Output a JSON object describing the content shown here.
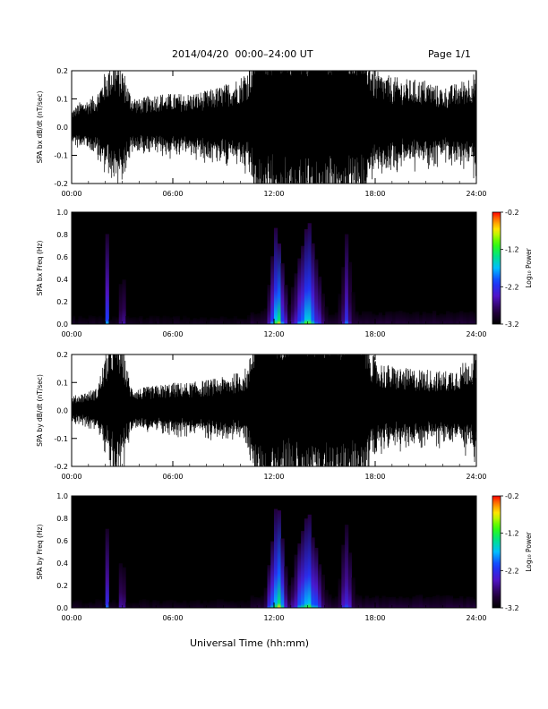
{
  "header": {
    "title": "2014/04/20  00:00–24:00 UT",
    "page": "Page 1/1"
  },
  "x_axis_title": "Universal Time (hh:mm)",
  "chart_data": [
    {
      "type": "line",
      "ylabel": "SPA bx dB/dt (nT/sec)",
      "xlim": [
        "00:00",
        "24:00"
      ],
      "ylim": [
        -0.2,
        0.2
      ],
      "yticks": [
        "-0.2",
        "-0.1",
        "0.0",
        "0.1",
        "0.2"
      ],
      "xticks": [
        "00:00",
        "06:00",
        "12:00",
        "18:00",
        "24:00"
      ],
      "envelope": {
        "hours": [
          0,
          0.5,
          1,
          1.5,
          2,
          2.5,
          3,
          3.5,
          4,
          5,
          6,
          7,
          8,
          9,
          10,
          10.5,
          11,
          12,
          13,
          14,
          15,
          16,
          17,
          18,
          19,
          20,
          21,
          22,
          23,
          24
        ],
        "amplitude": [
          0.06,
          0.09,
          0.1,
          0.12,
          0.2,
          0.25,
          0.22,
          0.12,
          0.1,
          0.12,
          0.12,
          0.12,
          0.13,
          0.15,
          0.18,
          0.22,
          0.4,
          0.4,
          0.4,
          0.4,
          0.4,
          0.4,
          0.4,
          0.2,
          0.18,
          0.17,
          0.17,
          0.14,
          0.16,
          0.2
        ]
      }
    },
    {
      "type": "heatmap",
      "ylabel": "SPA bx Freq (Hz)",
      "xlim": [
        "00:00",
        "24:00"
      ],
      "ylim": [
        0.0,
        1.0
      ],
      "yticks": [
        "0.0",
        "0.2",
        "0.4",
        "0.6",
        "0.8",
        "1.0"
      ],
      "xticks": [
        "00:00",
        "06:00",
        "12:00",
        "18:00",
        "24:00"
      ],
      "colorbar": {
        "label": "Log₁₀ Power",
        "ticks": [
          "-0.2",
          "-1.2",
          "-2.2",
          "-3.2"
        ],
        "range": [
          -3.2,
          -0.2
        ]
      },
      "bursts": [
        {
          "center_hours": 2.1,
          "width_hours": 0.12,
          "top_hz": 0.85,
          "level": 0.55
        },
        {
          "center_hours": 3.0,
          "width_hours": 0.12,
          "top_hz": 0.95,
          "level": 0.6
        },
        {
          "center_hours": 12.2,
          "width_hours": 0.55,
          "top_hz": 1.0,
          "level": 0.95
        },
        {
          "center_hours": 14.0,
          "width_hours": 0.9,
          "top_hz": 1.0,
          "level": 0.8
        },
        {
          "center_hours": 16.3,
          "width_hours": 0.4,
          "top_hz": 0.9,
          "level": 0.45
        }
      ]
    },
    {
      "type": "line",
      "ylabel": "SPA by dB/dt (nT/sec)",
      "xlim": [
        "00:00",
        "24:00"
      ],
      "ylim": [
        -0.2,
        0.2
      ],
      "yticks": [
        "-0.2",
        "-0.1",
        "0.0",
        "0.1",
        "0.2"
      ],
      "xticks": [
        "00:00",
        "06:00",
        "12:00",
        "18:00",
        "24:00"
      ],
      "envelope": {
        "hours": [
          0,
          0.5,
          1,
          1.5,
          2,
          2.5,
          3,
          3.5,
          4,
          5,
          6,
          7,
          8,
          9,
          10,
          10.5,
          11,
          12,
          13,
          14,
          15,
          16,
          17,
          18,
          19,
          20,
          21,
          22,
          23,
          24
        ],
        "amplitude": [
          0.05,
          0.06,
          0.07,
          0.08,
          0.2,
          0.3,
          0.25,
          0.09,
          0.08,
          0.09,
          0.1,
          0.1,
          0.11,
          0.12,
          0.14,
          0.16,
          0.4,
          0.4,
          0.4,
          0.4,
          0.4,
          0.4,
          0.4,
          0.18,
          0.16,
          0.15,
          0.15,
          0.14,
          0.16,
          0.22
        ]
      }
    },
    {
      "type": "heatmap",
      "ylabel": "SPA by Freq (Hz)",
      "xlim": [
        "00:00",
        "24:00"
      ],
      "ylim": [
        0.0,
        1.0
      ],
      "yticks": [
        "0.0",
        "0.2",
        "0.4",
        "0.6",
        "0.8",
        "1.0"
      ],
      "xticks": [
        "00:00",
        "06:00",
        "12:00",
        "18:00",
        "24:00"
      ],
      "colorbar": {
        "label": "Log₁₀ Power",
        "ticks": [
          "-0.2",
          "-1.2",
          "-2.2",
          "-3.2"
        ],
        "range": [
          -3.2,
          -0.2
        ]
      },
      "bursts": [
        {
          "center_hours": 2.1,
          "width_hours": 0.12,
          "top_hz": 0.85,
          "level": 0.55
        },
        {
          "center_hours": 3.0,
          "width_hours": 0.12,
          "top_hz": 0.95,
          "level": 0.6
        },
        {
          "center_hours": 12.2,
          "width_hours": 0.6,
          "top_hz": 1.0,
          "level": 0.95
        },
        {
          "center_hours": 14.0,
          "width_hours": 0.9,
          "top_hz": 1.0,
          "level": 0.85
        },
        {
          "center_hours": 16.3,
          "width_hours": 0.4,
          "top_hz": 0.9,
          "level": 0.5
        }
      ]
    }
  ]
}
